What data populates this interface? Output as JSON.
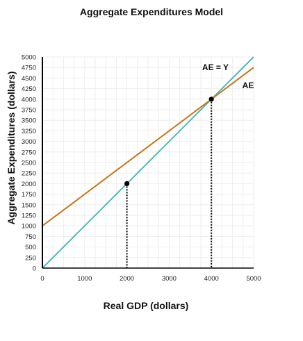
{
  "chart_data": {
    "type": "line",
    "title": "Aggregate Expenditures Model",
    "xlabel": "Real GDP (dollars)",
    "ylabel": "Aggregate Expenditures (dollars)",
    "xlim": [
      0,
      5000
    ],
    "ylim": [
      0,
      5000
    ],
    "x_ticks": [
      0,
      1000,
      2000,
      3000,
      4000,
      5000
    ],
    "y_ticks": [
      0,
      250,
      500,
      750,
      1000,
      1250,
      1500,
      1750,
      2000,
      2250,
      2500,
      2750,
      3000,
      3250,
      3500,
      3750,
      4000,
      4250,
      4500,
      4750,
      5000
    ],
    "grid": true,
    "series": [
      {
        "name": "AE = Y",
        "color": "#4bb8c0",
        "x": [
          0,
          5000
        ],
        "y": [
          0,
          5000
        ]
      },
      {
        "name": "AE",
        "color": "#c87416",
        "x": [
          0,
          5000
        ],
        "y": [
          1000,
          4750
        ]
      }
    ],
    "points": [
      {
        "x": 2000,
        "y": 2000
      },
      {
        "x": 4000,
        "y": 4000
      }
    ],
    "dotted_guides": [
      {
        "x": 2000,
        "y": 2000
      },
      {
        "x": 4000,
        "y": 4000
      }
    ]
  }
}
